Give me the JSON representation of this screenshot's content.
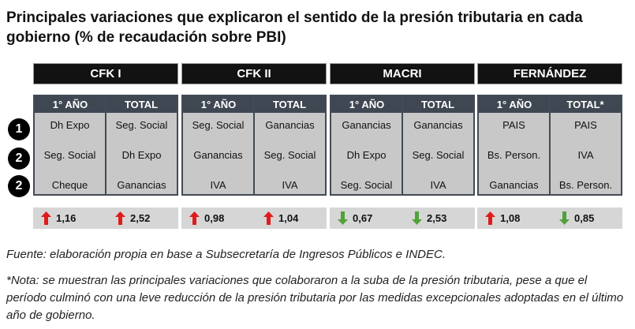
{
  "title": "Principales variaciones que explicaron el sentido de la presión tributaria en cada gobierno (% de recaudación sobre PBI)",
  "ranks": [
    "1",
    "2",
    "2"
  ],
  "governments": [
    {
      "name": "CFK I",
      "col1_header": "1° AÑO",
      "col2_header": "TOTAL",
      "col1": [
        "Dh Expo",
        "Seg. Social",
        "Cheque"
      ],
      "col2": [
        "Seg. Social",
        "Dh Expo",
        "Ganancias"
      ],
      "change1": {
        "value": "1,16",
        "direction": "up"
      },
      "change2": {
        "value": "2,52",
        "direction": "up"
      }
    },
    {
      "name": "CFK II",
      "col1_header": "1° AÑO",
      "col2_header": "TOTAL",
      "col1": [
        "Seg. Social",
        "Ganancias",
        "IVA"
      ],
      "col2": [
        "Ganancias",
        "Seg. Social",
        "IVA"
      ],
      "change1": {
        "value": "0,98",
        "direction": "up"
      },
      "change2": {
        "value": "1,04",
        "direction": "up"
      }
    },
    {
      "name": "MACRI",
      "col1_header": "1° AÑO",
      "col2_header": "TOTAL",
      "col1": [
        "Ganancias",
        "Dh Expo",
        "Seg. Social"
      ],
      "col2": [
        "Ganancias",
        "Seg. Social",
        "IVA"
      ],
      "change1": {
        "value": "0,67",
        "direction": "down"
      },
      "change2": {
        "value": "2,53",
        "direction": "down"
      }
    },
    {
      "name": "FERNÁNDEZ",
      "col1_header": "1° AÑO",
      "col2_header": "TOTAL*",
      "col1": [
        "PAIS",
        "Bs. Person.",
        "Ganancias"
      ],
      "col2": [
        "PAIS",
        "IVA",
        "Bs. Person."
      ],
      "change1": {
        "value": "1,08",
        "direction": "up"
      },
      "change2": {
        "value": "0,85",
        "direction": "down"
      }
    }
  ],
  "colors": {
    "up": "#e01b1b",
    "down": "#4fa23a"
  },
  "source_note": "Fuente: elaboración propia en base a Subsecretaría de Ingresos Públicos e INDEC.",
  "footnote": "*Nota: se muestran las principales variaciones que colaboraron a la suba de la presión tributaria, pese a que el período culminó con una leve reducción de la presión tributaria por las medidas excepcionales adoptadas en el último año de gobierno."
}
